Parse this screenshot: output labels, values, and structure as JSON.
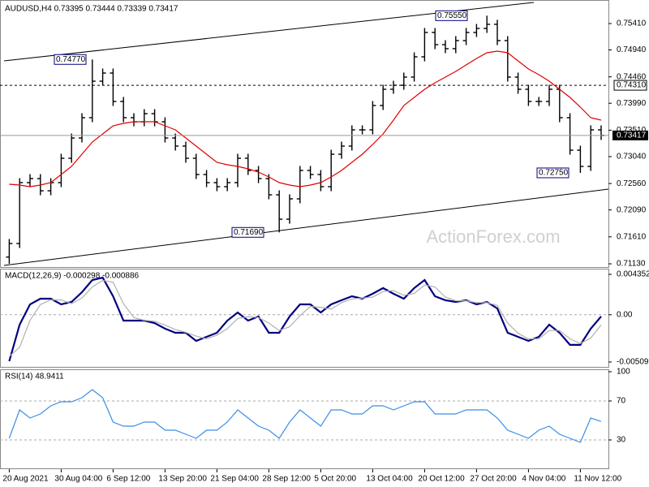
{
  "chart_data": [
    {
      "type": "ohlc",
      "title": "AUDUSD,H4  0.73395 0.73444 0.73339 0.73417",
      "watermark": "ActionForex.com",
      "categories": [
        "20 Aug 2021",
        null,
        null,
        null,
        null,
        "30 Aug 04:00",
        null,
        null,
        null,
        null,
        "6 Sep 12:00",
        null,
        null,
        null,
        null,
        "13 Sep 20:00",
        null,
        null,
        null,
        null,
        "21 Sep 04:00",
        null,
        null,
        null,
        null,
        "28 Sep 12:00",
        null,
        null,
        null,
        null,
        "5 Oct 20:00",
        null,
        null,
        null,
        null,
        "13 Oct 04:00",
        null,
        null,
        null,
        null,
        "20 Oct 12:00",
        null,
        null,
        null,
        null,
        "27 Oct 20:00",
        null,
        null,
        null,
        null,
        "4 Nov 04:00",
        null,
        null,
        null,
        null,
        "11 Nov 12:00",
        null,
        null
      ],
      "open": [
        0.7125,
        0.71492,
        0.72576,
        0.72648,
        0.72431,
        0.72576,
        0.7301,
        0.73371,
        0.73733,
        0.74383,
        0.74528,
        0.74022,
        0.73733,
        0.7366,
        0.73805,
        0.7366,
        0.73371,
        0.73227,
        0.7301,
        0.72721,
        0.72576,
        0.72504,
        0.72576,
        0.7301,
        0.72793,
        0.72648,
        0.72359,
        0.71925,
        0.72287,
        0.72793,
        0.72721,
        0.72504,
        0.73082,
        0.73227,
        0.73516,
        0.73516,
        0.7395,
        0.74239,
        0.74311,
        0.74456,
        0.74817,
        0.75251,
        0.75034,
        0.74962,
        0.75106,
        0.75251,
        0.75323,
        0.75396,
        0.75106,
        0.74456,
        0.74239,
        0.74022,
        0.74022,
        0.74239,
        0.73733,
        0.73154,
        0.72865,
        0.73516
      ],
      "high": [
        0.71572,
        0.72656,
        0.72728,
        0.72728,
        0.72656,
        0.7309,
        0.73451,
        0.73813,
        0.7477,
        0.74608,
        0.74608,
        0.74102,
        0.73813,
        0.73885,
        0.73885,
        0.7374,
        0.73451,
        0.73307,
        0.7309,
        0.72801,
        0.72656,
        0.72656,
        0.7309,
        0.7309,
        0.72873,
        0.72728,
        0.72439,
        0.72367,
        0.72873,
        0.72873,
        0.72801,
        0.73162,
        0.73307,
        0.73596,
        0.73596,
        0.7403,
        0.74319,
        0.74391,
        0.74536,
        0.74897,
        0.75331,
        0.75331,
        0.75114,
        0.75186,
        0.75331,
        0.75403,
        0.7555,
        0.75476,
        0.75186,
        0.74536,
        0.74319,
        0.74102,
        0.74319,
        0.74319,
        0.73813,
        0.73234,
        0.73596,
        0.73596
      ],
      "low": [
        0.7113,
        0.71412,
        0.72496,
        0.72351,
        0.72351,
        0.72496,
        0.7293,
        0.73291,
        0.73653,
        0.74303,
        0.73942,
        0.73653,
        0.7358,
        0.7358,
        0.7358,
        0.73291,
        0.73147,
        0.7293,
        0.72641,
        0.72496,
        0.72424,
        0.72424,
        0.72496,
        0.72713,
        0.72568,
        0.72279,
        0.7169,
        0.71845,
        0.72207,
        0.72641,
        0.72424,
        0.72424,
        0.73002,
        0.73147,
        0.73436,
        0.73436,
        0.7387,
        0.74159,
        0.74231,
        0.74376,
        0.74737,
        0.74954,
        0.74882,
        0.74882,
        0.75026,
        0.75171,
        0.75243,
        0.75026,
        0.74376,
        0.74159,
        0.73942,
        0.73942,
        0.73942,
        0.73653,
        0.73074,
        0.7275,
        0.72785,
        0.73337
      ],
      "close": [
        0.71492,
        0.72576,
        0.72648,
        0.72431,
        0.72576,
        0.7301,
        0.73371,
        0.73733,
        0.74383,
        0.74528,
        0.74022,
        0.73733,
        0.7366,
        0.73805,
        0.7366,
        0.73371,
        0.73227,
        0.7301,
        0.72721,
        0.72576,
        0.72504,
        0.72576,
        0.7301,
        0.72793,
        0.72648,
        0.72359,
        0.71925,
        0.72287,
        0.72793,
        0.72721,
        0.72504,
        0.73082,
        0.73227,
        0.73516,
        0.73516,
        0.7395,
        0.74239,
        0.74311,
        0.74456,
        0.74817,
        0.75251,
        0.75034,
        0.74962,
        0.75106,
        0.75251,
        0.75323,
        0.75396,
        0.75106,
        0.74456,
        0.74239,
        0.74022,
        0.74022,
        0.74239,
        0.73733,
        0.73154,
        0.72865,
        0.73516,
        0.73417
      ],
      "color": "#000000",
      "moving_average": {
        "color": "#e00000",
        "values": [
          0.72547,
          0.72533,
          0.72504,
          0.72533,
          0.72576,
          0.72721,
          0.72865,
          0.73082,
          0.73299,
          0.73444,
          0.73588,
          0.73632,
          0.7366,
          0.7366,
          0.7366,
          0.73588,
          0.73516,
          0.73371,
          0.73227,
          0.73082,
          0.72937,
          0.72894,
          0.72865,
          0.72822,
          0.72764,
          0.72677,
          0.72576,
          0.72533,
          0.72504,
          0.72533,
          0.72576,
          0.72677,
          0.72793,
          0.72937,
          0.73082,
          0.73256,
          0.73444,
          0.73689,
          0.7395,
          0.74094,
          0.74239,
          0.74354,
          0.74456,
          0.74557,
          0.74673,
          0.74788,
          0.74889,
          0.74918,
          0.74889,
          0.74745,
          0.746,
          0.74499,
          0.74383,
          0.74239,
          0.74094,
          0.73921,
          0.73733,
          0.73689
        ]
      },
      "ylim": [
        0.71087,
        0.75757
      ],
      "yticks": [
        {
          "value": 0.7541,
          "label": "0.75410"
        },
        {
          "value": 0.7494,
          "label": "0.74940"
        },
        {
          "value": 0.7446,
          "label": "0.74460"
        },
        {
          "value": 0.7399,
          "label": "0.73990"
        },
        {
          "value": 0.7351,
          "label": "0.73510"
        },
        {
          "value": 0.7304,
          "label": "0.73040"
        },
        {
          "value": 0.7256,
          "label": "0.72560"
        },
        {
          "value": 0.7209,
          "label": "0.72090"
        },
        {
          "value": 0.7161,
          "label": "0.71610"
        },
        {
          "value": 0.7113,
          "label": "0.71130"
        }
      ],
      "reference_line": {
        "value": 0.7431,
        "label": "0.74310"
      },
      "current_price": 0.73417,
      "annotations": [
        {
          "value": 0.7477,
          "label": "0.74770"
        },
        {
          "value": 0.7555,
          "label": "0.75550"
        },
        {
          "value": 0.7169,
          "label": "0.71690"
        },
        {
          "value": 0.7275,
          "label": "0.72750"
        }
      ]
    },
    {
      "type": "line",
      "title": "MACD(12,26,9) -0.000298 -0.000886",
      "series": [
        {
          "color": "#000080",
          "values": [
            -0.005,
            -0.00107,
            0.00112,
            0.00173,
            0.00173,
            0.00112,
            0.00138,
            0.00243,
            0.00374,
            0.004,
            0.00199,
            -0.00063,
            -0.00063,
            -0.00063,
            -0.00089,
            -0.0015,
            -0.00194,
            -0.00194,
            -0.00282,
            -0.00238,
            -0.00194,
            -0.00063,
            0.00024,
            -0.00063,
            -0.00019,
            -0.00194,
            -0.00194,
            -0.00019,
            0.00112,
            0.00112,
            0.00024,
            0.00112,
            0.00156,
            0.00199,
            0.00173,
            0.00226,
            0.00287,
            0.00226,
            0.00173,
            0.00287,
            0.00374,
            0.00199,
            0.00156,
            0.00138,
            0.00156,
            0.00112,
            0.00138,
            0.00068,
            -0.00194,
            -0.00238,
            -0.00282,
            -0.00238,
            -0.00107,
            -0.00194,
            -0.00325,
            -0.00325,
            -0.0015,
            -0.00019
          ]
        },
        {
          "color": "#b0b0b0",
          "values": [
            -0.0045,
            -0.0035,
            -0.0006,
            0.0011,
            0.0016,
            0.0016,
            0.0012,
            0.0018,
            0.003,
            0.0037,
            0.0035,
            0.0012,
            -0.0003,
            -0.0006,
            -0.0007,
            -0.0011,
            -0.0016,
            -0.0019,
            -0.0023,
            -0.0026,
            -0.0022,
            -0.0015,
            -0.0004,
            -0.0002,
            -0.0003,
            -0.0009,
            -0.0017,
            -0.0013,
            -0.0001,
            0.0009,
            0.0008,
            0.0006,
            0.0013,
            0.0017,
            0.0018,
            0.0019,
            0.0025,
            0.0026,
            0.0021,
            0.0023,
            0.0032,
            0.003,
            0.0019,
            0.0015,
            0.0015,
            0.0013,
            0.0013,
            0.001,
            -0.0009,
            -0.002,
            -0.0026,
            -0.0026,
            -0.0017,
            -0.0017,
            -0.0026,
            -0.0031,
            -0.0025,
            -0.0011
          ]
        }
      ],
      "ylim": [
        -0.005615,
        0.004789
      ],
      "yticks": [
        0.004352,
        {
          "value": 0,
          "label": "0.00"
        },
        -0.00509
      ]
    },
    {
      "type": "line",
      "title": "RSI(14) 48.9411",
      "series": [
        {
          "color": "#3a8ee6",
          "values": [
            31.7,
            60.8,
            52.5,
            56.7,
            65,
            69.2,
            69.2,
            73.3,
            81.7,
            73.3,
            48.3,
            44.2,
            44.2,
            48.3,
            48.3,
            40,
            40,
            35.8,
            31.7,
            40,
            40,
            48.3,
            60.8,
            52.5,
            44.2,
            40,
            31.7,
            48.3,
            60.8,
            52.5,
            44.2,
            60.8,
            60.8,
            56.7,
            56.7,
            65,
            65,
            60.8,
            65,
            69.2,
            69.2,
            56.7,
            56.7,
            56.7,
            60.8,
            60.8,
            60.8,
            52.5,
            40,
            35.8,
            31.7,
            40,
            44.2,
            35.8,
            31.7,
            27.5,
            52.5,
            48.9
          ]
        }
      ],
      "ylim": [
        0,
        100
      ],
      "yticks": [
        100,
        70,
        30
      ]
    }
  ]
}
